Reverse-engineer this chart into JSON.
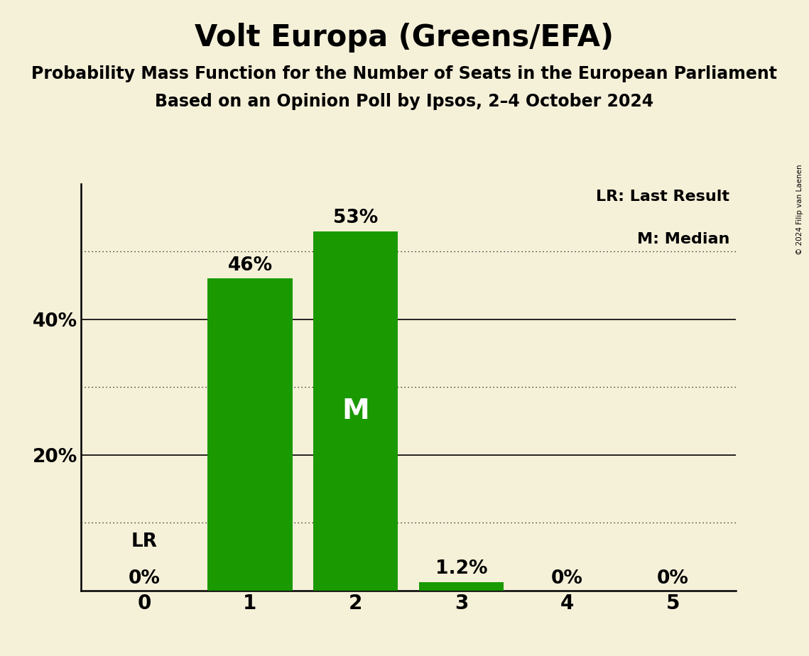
{
  "title": "Volt Europa (Greens/EFA)",
  "subtitle1": "Probability Mass Function for the Number of Seats in the European Parliament",
  "subtitle2": "Based on an Opinion Poll by Ipsos, 2–4 October 2024",
  "copyright": "© 2024 Filip van Laenen",
  "categories": [
    0,
    1,
    2,
    3,
    4,
    5
  ],
  "values": [
    0.0,
    0.46,
    0.53,
    0.012,
    0.0,
    0.0
  ],
  "labels": [
    "0%",
    "46%",
    "53%",
    "1.2%",
    "0%",
    "0%"
  ],
  "bar_color": "#1a9900",
  "background_color": "#f5f0d8",
  "last_result_seat": 0,
  "median_seat": 2,
  "yticks": [
    0.0,
    0.1,
    0.2,
    0.3,
    0.4,
    0.5
  ],
  "ytick_labels": [
    "",
    "",
    "20%",
    "",
    "40%",
    ""
  ],
  "solid_yticks": [
    0.2,
    0.4
  ],
  "dotted_yticks": [
    0.1,
    0.3,
    0.5
  ],
  "legend_lr": "LR: Last Result",
  "legend_m": "M: Median",
  "title_fontsize": 30,
  "subtitle_fontsize": 17,
  "label_fontsize": 19,
  "ytick_fontsize": 19,
  "xtick_fontsize": 20,
  "legend_fontsize": 16,
  "ylim": [
    0,
    0.6
  ]
}
